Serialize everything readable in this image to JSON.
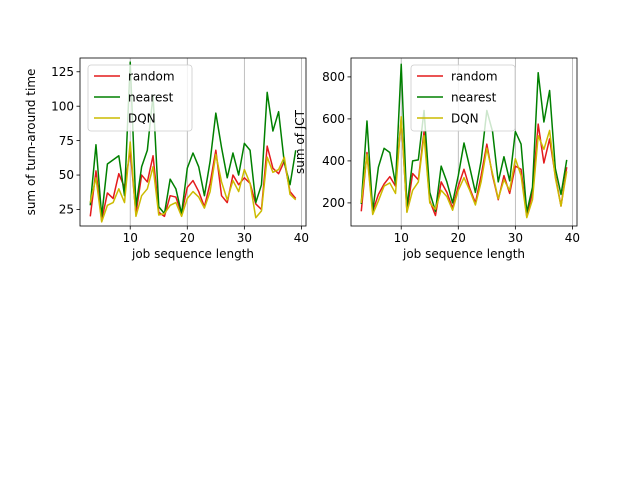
{
  "colors": {
    "random": "#e41a1c",
    "nearest": "#008000",
    "dqn": "#ccbb00",
    "grid": "#b0b0b0"
  },
  "chart_data": [
    {
      "type": "line",
      "xlabel": "job sequence length",
      "ylabel": "sum of turn-around time",
      "xlim": [
        1.2,
        40.8
      ],
      "ylim": [
        13,
        135
      ],
      "xticks": [
        10,
        20,
        30,
        40
      ],
      "yticks": [
        25,
        50,
        75,
        100,
        125
      ],
      "grid": "x-only",
      "legend_position": "top-left",
      "x": [
        3,
        4,
        5,
        6,
        7,
        8,
        9,
        10,
        11,
        12,
        13,
        14,
        15,
        16,
        17,
        18,
        19,
        20,
        21,
        22,
        23,
        24,
        25,
        26,
        27,
        28,
        29,
        30,
        31,
        32,
        33,
        34,
        35,
        36,
        37,
        38,
        39
      ],
      "series": [
        {
          "name": "random",
          "color_key": "random",
          "values": [
            20,
            53,
            17,
            37,
            33,
            51,
            41,
            68,
            22,
            50,
            45,
            64,
            23,
            20,
            35,
            34,
            22,
            41,
            46,
            38,
            27,
            44,
            68,
            35,
            30,
            50,
            43,
            48,
            44,
            29,
            25,
            71,
            55,
            51,
            60,
            38,
            33
          ]
        },
        {
          "name": "nearest",
          "color_key": "nearest",
          "values": [
            28,
            72,
            20,
            58,
            61,
            64,
            35,
            132,
            27,
            56,
            68,
            108,
            27,
            22,
            47,
            40,
            22,
            55,
            66,
            56,
            35,
            60,
            95,
            70,
            48,
            66,
            50,
            73,
            68,
            30,
            43,
            110,
            82,
            96,
            59,
            43,
            68
          ]
        },
        {
          "name": "DQN",
          "color_key": "dqn",
          "values": [
            30,
            48,
            16,
            28,
            30,
            40,
            30,
            74,
            20,
            35,
            40,
            56,
            21,
            22,
            28,
            30,
            20,
            33,
            38,
            34,
            26,
            38,
            65,
            45,
            32,
            46,
            38,
            54,
            44,
            19,
            24,
            63,
            52,
            54,
            63,
            36,
            32
          ]
        }
      ]
    },
    {
      "type": "line",
      "xlabel": "job sequence length",
      "ylabel": "sum of JCT",
      "xlim": [
        1.2,
        40.8
      ],
      "ylim": [
        90,
        890
      ],
      "xticks": [
        10,
        20,
        30,
        40
      ],
      "yticks": [
        200,
        400,
        600,
        800
      ],
      "grid": "x-only",
      "legend_position": "top-left",
      "x": [
        3,
        4,
        5,
        6,
        7,
        8,
        9,
        10,
        11,
        12,
        13,
        14,
        15,
        16,
        17,
        18,
        19,
        20,
        21,
        22,
        23,
        24,
        25,
        26,
        27,
        28,
        29,
        30,
        31,
        32,
        33,
        34,
        35,
        36,
        37,
        38,
        39
      ],
      "series": [
        {
          "name": "random",
          "color_key": "random",
          "values": [
            160,
            440,
            160,
            240,
            290,
            325,
            280,
            600,
            160,
            340,
            310,
            540,
            210,
            140,
            300,
            250,
            175,
            280,
            360,
            270,
            200,
            330,
            480,
            330,
            215,
            330,
            245,
            375,
            360,
            135,
            250,
            575,
            390,
            505,
            330,
            185,
            370
          ]
        },
        {
          "name": "nearest",
          "color_key": "nearest",
          "values": [
            195,
            590,
            160,
            370,
            460,
            440,
            290,
            860,
            180,
            400,
            405,
            640,
            250,
            160,
            375,
            300,
            200,
            330,
            485,
            370,
            250,
            400,
            640,
            540,
            300,
            420,
            305,
            540,
            480,
            155,
            275,
            820,
            585,
            735,
            365,
            240,
            405
          ]
        },
        {
          "name": "DQN",
          "color_key": "dqn",
          "values": [
            200,
            430,
            145,
            210,
            280,
            295,
            245,
            610,
            155,
            260,
            300,
            520,
            200,
            170,
            260,
            230,
            165,
            260,
            320,
            260,
            190,
            300,
            460,
            340,
            220,
            310,
            260,
            410,
            330,
            130,
            215,
            520,
            455,
            545,
            320,
            185,
            350
          ]
        }
      ]
    }
  ]
}
